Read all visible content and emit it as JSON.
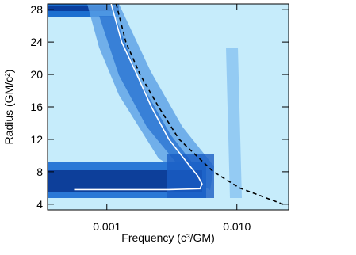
{
  "chart_data": {
    "type": "line",
    "xlabel": "Frequency (c³/GM)",
    "ylabel": "Radius (GM/c²)",
    "xlim": [
      0.00035,
      0.025
    ],
    "xscale": "log",
    "xticks": [
      0.001,
      {
        "value": 0.01,
        "label": "0.010"
      }
    ],
    "ylim": [
      3.3,
      28.7
    ],
    "yticks": [
      4,
      8,
      12,
      16,
      20,
      24,
      28
    ],
    "series": [
      {
        "color": "#ffffff",
        "dash": false,
        "x": [
          0.00108,
          0.0013,
          0.0017,
          0.0022,
          0.003,
          0.0042,
          0.005,
          0.0054,
          0.0052,
          0.003,
          0.00056
        ],
        "values": [
          28.7,
          24,
          20,
          16,
          12,
          9,
          7.5,
          6.5,
          5.9,
          5.8,
          5.8
        ]
      },
      {
        "color": "#000000",
        "dash": true,
        "x": [
          0.00118,
          0.0014,
          0.0018,
          0.0025,
          0.0036,
          0.0066,
          0.0105,
          0.0227
        ],
        "values": [
          28.7,
          24,
          20,
          16,
          12,
          8,
          6,
          4
        ]
      }
    ]
  }
}
